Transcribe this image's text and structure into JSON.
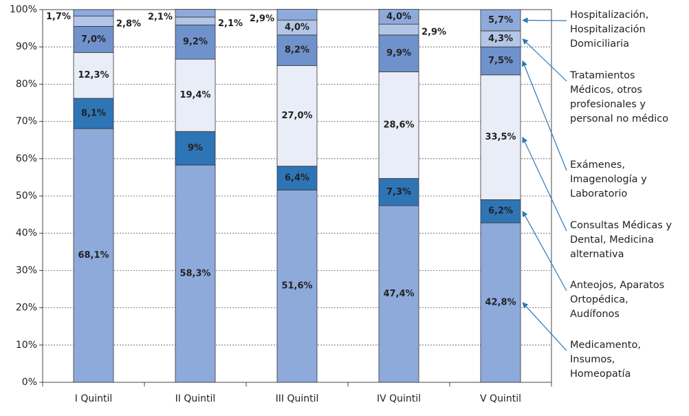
{
  "chart_data": {
    "type": "stacked_bar",
    "categories": [
      "I Quintil",
      "II Quintil",
      "III Quintil",
      "IV Quintil",
      "V Quintil"
    ],
    "series": [
      {
        "name": "Medicamento, Insumos, Homeopatía",
        "color": "#8eaadb",
        "values": [
          68.1,
          58.3,
          51.6,
          47.4,
          42.8
        ],
        "value_labels": [
          "68,1%",
          "58,3%",
          "51,6%",
          "47,4%",
          "42,8%"
        ]
      },
      {
        "name": "Anteojos, Aparatos Ortopédica, Audífonos",
        "color": "#2e75b6",
        "values": [
          8.1,
          9,
          6.4,
          7.3,
          6.2
        ],
        "value_labels": [
          "8,1%",
          "9%",
          "6,4%",
          "7,3%",
          "6,2%"
        ]
      },
      {
        "name": "Consultas Médicas y Dental, Medicina alternativa",
        "color": "#e9edf7",
        "values": [
          12.3,
          19.4,
          27.0,
          28.6,
          33.5
        ],
        "value_labels": [
          "12,3%",
          "19,4%",
          "27,0%",
          "28,6%",
          "33,5%"
        ]
      },
      {
        "name": "Exámenes, Imagenología y Laboratorio",
        "color": "#6f92cc",
        "values": [
          7.0,
          9.2,
          8.2,
          9.9,
          7.5
        ],
        "value_labels": [
          "7,0%",
          "9,2%",
          "8,2%",
          "9,9%",
          "7,5%"
        ]
      },
      {
        "name": "Tratamientos Médicos, otros profesionales y personal no médico",
        "color": "#b4c6e7",
        "values": [
          2.8,
          2.1,
          4.0,
          2.9,
          4.3
        ],
        "value_labels": [
          "2,8%",
          "2,1%",
          "4,0%",
          "2,9%",
          "4,3%"
        ]
      },
      {
        "name": "Hospitalización, Hospitalización Domiciliaria",
        "color": "#8eaadb",
        "values": [
          1.7,
          2.1,
          2.9,
          4.0,
          5.7
        ],
        "value_labels": [
          "1,7%",
          "2,1%",
          "2,9%",
          "4,0%",
          "5,7%"
        ]
      }
    ],
    "ylim": [
      0,
      100
    ],
    "yticks": [
      {
        "value": 0,
        "label": "0%"
      },
      {
        "value": 10,
        "label": "10%"
      },
      {
        "value": 20,
        "label": "20%"
      },
      {
        "value": 30,
        "label": "30%"
      },
      {
        "value": 40,
        "label": "40%"
      },
      {
        "value": 50,
        "label": "50%"
      },
      {
        "value": 60,
        "label": "60%"
      },
      {
        "value": 70,
        "label": "70%"
      },
      {
        "value": 80,
        "label": "80%"
      },
      {
        "value": 90,
        "label": "90%"
      },
      {
        "value": 100,
        "label": "100%"
      }
    ],
    "grid": true,
    "legend": "right"
  }
}
